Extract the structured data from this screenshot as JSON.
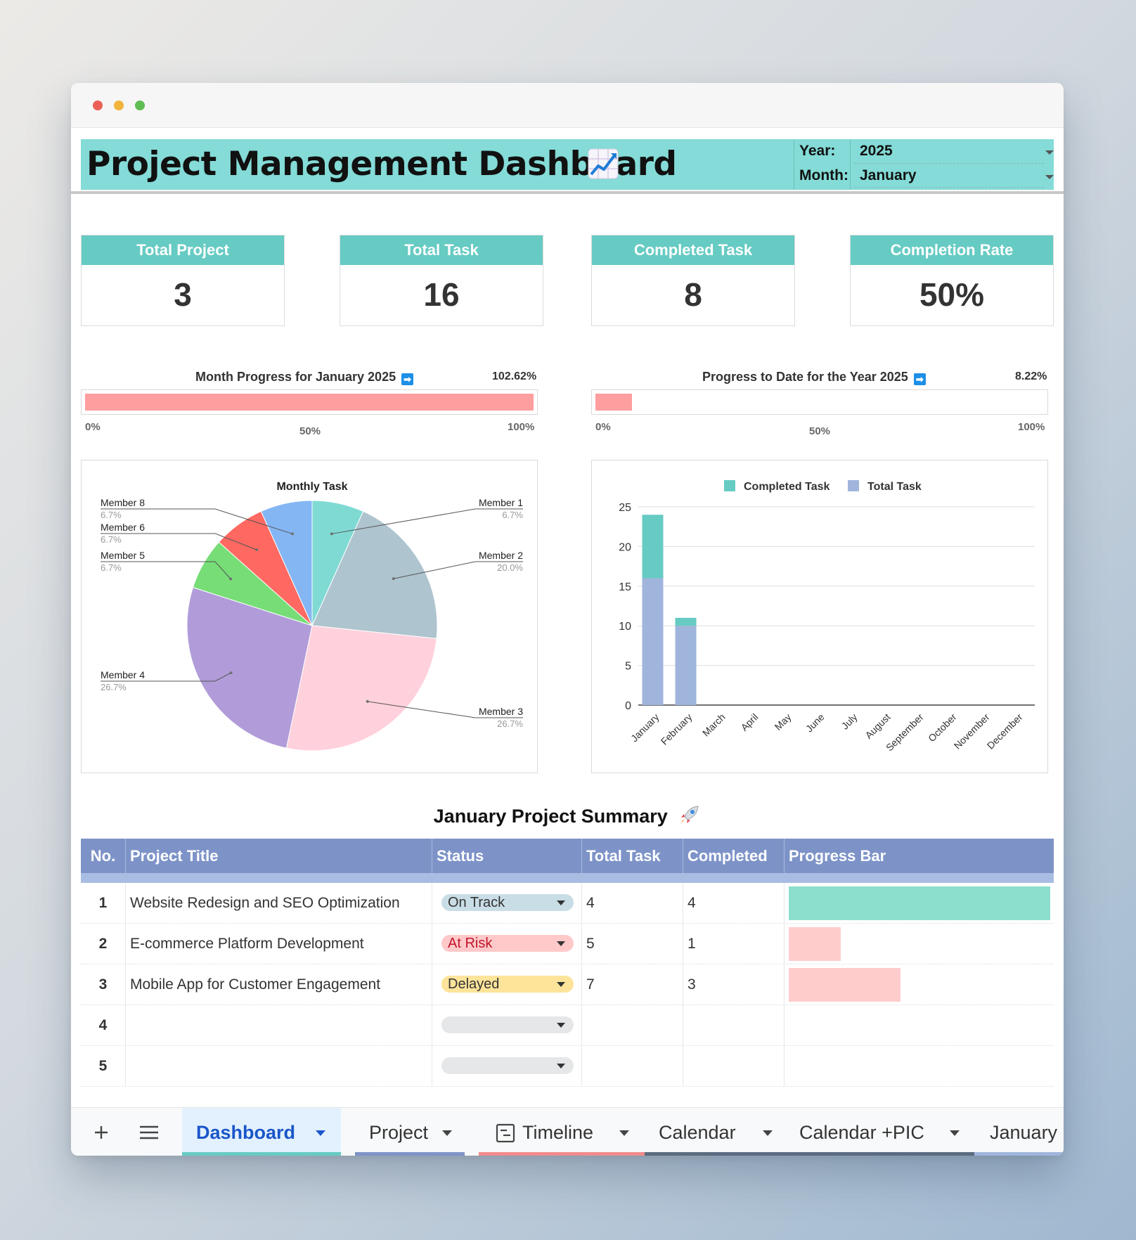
{
  "header": {
    "title": "Project Management Dashboard",
    "year_label": "Year:",
    "year_value": "2025",
    "month_label": "Month:",
    "month_value": "January"
  },
  "kpis": [
    {
      "label": "Total Project",
      "value": "3"
    },
    {
      "label": "Total Task",
      "value": "16"
    },
    {
      "label": "Completed Task",
      "value": "8"
    },
    {
      "label": "Completion Rate",
      "value": "50%"
    }
  ],
  "month_progress": {
    "title": "Month Progress for January 2025",
    "pct_label": "102.62%",
    "fill_fraction": 1.0,
    "ticks": [
      "0%",
      "50%",
      "100%"
    ]
  },
  "year_progress": {
    "title": "Progress to Date for the Year 2025",
    "pct_label": "8.22%",
    "fill_fraction": 0.0822,
    "ticks": [
      "0%",
      "50%",
      "100%"
    ]
  },
  "chart_data": [
    {
      "type": "pie",
      "title": "Monthly Task",
      "slices": [
        {
          "label": "Member 1",
          "pct": "6.7%",
          "value": 6.7,
          "color": "#80dad4"
        },
        {
          "label": "Member 2",
          "pct": "20.0%",
          "value": 20.0,
          "color": "#aec4cf"
        },
        {
          "label": "Member 3",
          "pct": "26.7%",
          "value": 26.7,
          "color": "#ffd1dc"
        },
        {
          "label": "Member 4",
          "pct": "26.7%",
          "value": 26.7,
          "color": "#b19cd9"
        },
        {
          "label": "Member 5",
          "pct": "6.7%",
          "value": 6.7,
          "color": "#77dd77"
        },
        {
          "label": "Member 6",
          "pct": "6.7%",
          "value": 6.7,
          "color": "#ff6961"
        },
        {
          "label": "Member 8",
          "pct": "6.7%",
          "value": 6.7,
          "color": "#84b6f4"
        }
      ]
    },
    {
      "type": "bar",
      "stacked": true,
      "categories": [
        "January",
        "February",
        "March",
        "April",
        "May",
        "June",
        "July",
        "August",
        "September",
        "October",
        "November",
        "December"
      ],
      "series": [
        {
          "name": "Completed Task",
          "color": "#66cbc3",
          "values": [
            8,
            1,
            0,
            0,
            0,
            0,
            0,
            0,
            0,
            0,
            0,
            0
          ]
        },
        {
          "name": "Total Task",
          "color": "#9fb5dc",
          "values": [
            16,
            10,
            0,
            0,
            0,
            0,
            0,
            0,
            0,
            0,
            0,
            0
          ]
        }
      ],
      "ylim": [
        0,
        25
      ],
      "yticks": [
        "0",
        "5",
        "10",
        "15",
        "20",
        "25"
      ],
      "legend": "top",
      "grid": true
    }
  ],
  "summary": {
    "title": "January Project Summary",
    "columns": [
      "No.",
      "Project Title",
      "Status",
      "Total Task",
      "Completed",
      "Progress Bar"
    ],
    "rows": [
      {
        "no": "1",
        "title": "Website Redesign and SEO Optimization",
        "status": "On Track",
        "status_bg": "#c9dde6",
        "status_fg": "#333333",
        "total": "4",
        "completed": "4",
        "progress": 1.0,
        "bar_color": "#8ddfcd"
      },
      {
        "no": "2",
        "title": "E-commerce Platform Development",
        "status": "At Risk",
        "status_bg": "#ffc9c9",
        "status_fg": "#c0152a",
        "total": "5",
        "completed": "1",
        "progress": 0.2,
        "bar_color": "#ffcccc"
      },
      {
        "no": "3",
        "title": "Mobile App for Customer Engagement",
        "status": "Delayed",
        "status_bg": "#fde49a",
        "status_fg": "#333333",
        "total": "7",
        "completed": "3",
        "progress": 0.4286,
        "bar_color": "#ffcccc"
      },
      {
        "no": "4",
        "title": "",
        "status": "",
        "status_bg": "#e6e7e8",
        "status_fg": "#333333",
        "total": "",
        "completed": "",
        "progress": 0,
        "bar_color": "#ffcccc"
      },
      {
        "no": "5",
        "title": "",
        "status": "",
        "status_bg": "#e6e7e8",
        "status_fg": "#333333",
        "total": "",
        "completed": "",
        "progress": 0,
        "bar_color": "#ffcccc"
      }
    ]
  },
  "tabs": [
    {
      "label": "Dashboard",
      "active": true,
      "color": "#66cbc3"
    },
    {
      "label": "Project",
      "active": false,
      "color": "#7d93c8"
    },
    {
      "label": "Timeline",
      "active": false,
      "color": "#f28b8b"
    },
    {
      "label": "Calendar",
      "active": false,
      "color": "#5b6b80"
    },
    {
      "label": "Calendar +PIC",
      "active": false,
      "color": "#5b6b80"
    },
    {
      "label": "January",
      "active": false,
      "color": "#9fb5dc"
    }
  ]
}
